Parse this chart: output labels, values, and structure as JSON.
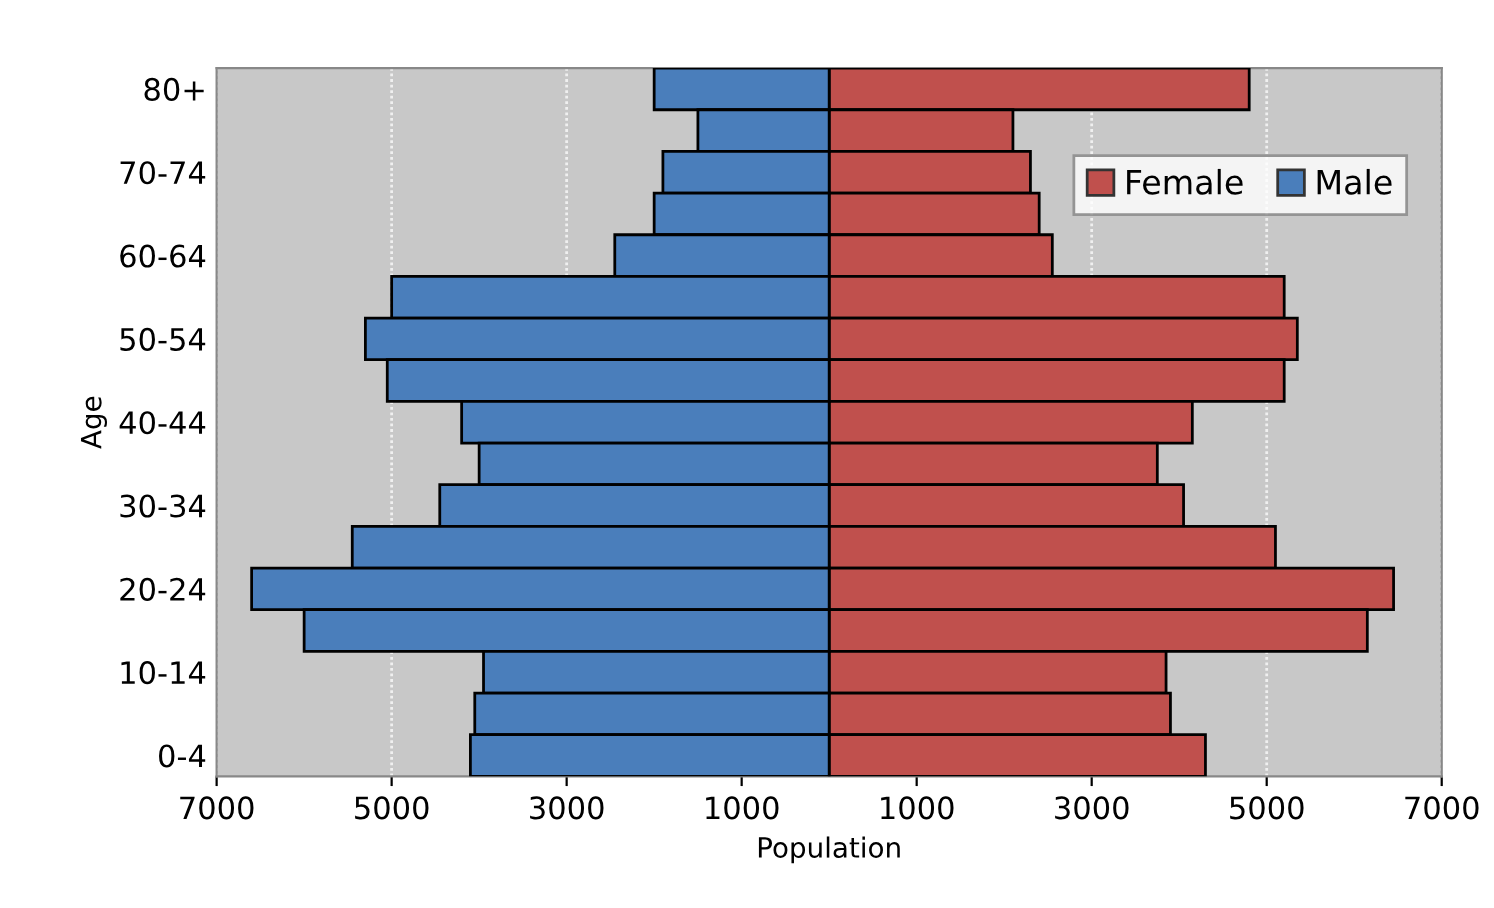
{
  "chart_data": {
    "type": "bar",
    "orientation": "horizontal",
    "xlabel": "Population",
    "ylabel": "Age",
    "categories": [
      "80+",
      null,
      "70-74",
      null,
      "60-64",
      null,
      "50-54",
      null,
      "40-44",
      null,
      "30-34",
      null,
      "20-24",
      null,
      "10-14",
      null,
      "0-4"
    ],
    "series": [
      {
        "name": "Female",
        "color": "#c0504d",
        "values": [
          4800,
          2100,
          2300,
          2400,
          2550,
          5200,
          5350,
          5200,
          4150,
          3750,
          4050,
          5100,
          6450,
          6150,
          3850,
          3900,
          4300
        ]
      },
      {
        "name": "Male",
        "color": "#4a7ebb",
        "values": [
          -2000,
          -1500,
          -1900,
          -2000,
          -2450,
          -5000,
          -5300,
          -5050,
          -4200,
          -4000,
          -4450,
          -5450,
          -6600,
          -6000,
          -3950,
          -4050,
          -4100
        ]
      }
    ],
    "xlim": [
      -7000,
      7000
    ],
    "xticks": [
      {
        "value": -7000,
        "label": "7000"
      },
      {
        "value": -5000,
        "label": "5000"
      },
      {
        "value": -3000,
        "label": "3000"
      },
      {
        "value": -1000,
        "label": "1000"
      },
      1000,
      3000,
      5000,
      7000
    ],
    "stacked": true,
    "grid": "x",
    "legend": "top right"
  }
}
